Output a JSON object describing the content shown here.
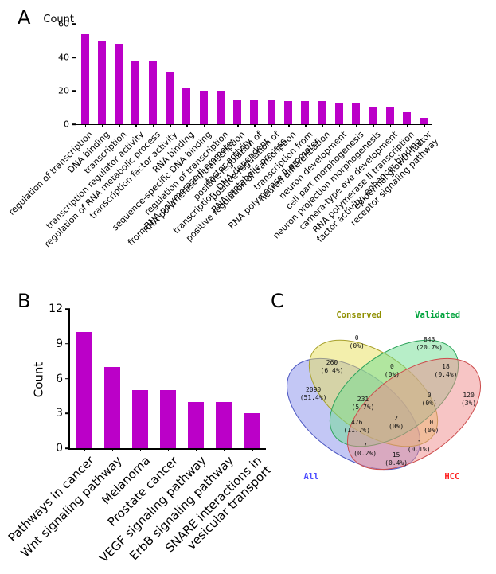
{
  "panels": {
    "a": "A",
    "b": "B",
    "c": "C"
  },
  "chart_data": [
    {
      "type": "bar",
      "panel": "A",
      "ylabel": "Count",
      "ylim": [
        0,
        60
      ],
      "yticks": [
        0,
        20,
        40,
        60
      ],
      "bar_color": "#bb00c8",
      "categories": [
        "regulation of transcription",
        "DNA binding",
        "transcription",
        "transcription regulator activity",
        "regulation of RNA metabolic process",
        "transcription factor activity",
        "RNA binding",
        "sequence-specific DNA binding",
        "regulation of transcription\nfrom RNA polymerase II promoter",
        "RNA polymerase II transcription\nfactor activity",
        "positive regulation of\ntranscription, DNA-dependent",
        "positive regulation of\nRNA metabolic process",
        "positive regulation of transcription",
        "transcription from\nRNA polymerase II promoter",
        "neuron differentiation",
        "neuron development",
        "cell part morphogenesis",
        "neuron projection morphogenesis",
        "camera-type eye development",
        "RNA polymerase II transcription\nfactor activity, enhancer binding",
        "epidermal growth factor\nreceptor signaling pathway"
      ],
      "values": [
        54,
        50,
        48,
        38,
        38,
        31,
        22,
        20,
        20,
        15,
        15,
        15,
        14,
        14,
        14,
        13,
        13,
        10,
        10,
        7,
        4
      ]
    },
    {
      "type": "bar",
      "panel": "B",
      "ylabel": "Count",
      "ylim": [
        0,
        12
      ],
      "yticks": [
        0,
        3,
        6,
        9,
        12
      ],
      "bar_color": "#bb00c8",
      "categories": [
        "Pathways in cancer",
        "Wnt signaling pathway",
        "Melanoma",
        "Prostate cancer",
        "VEGF signaling pathway",
        "ErbB signaling pathway",
        "SNARE interactions in\nvesicular transport"
      ],
      "values": [
        10,
        7,
        5,
        5,
        4,
        4,
        3
      ]
    },
    {
      "type": "venn",
      "panel": "C",
      "sets": [
        {
          "name": "Conserved",
          "color": "#8f8f00",
          "label_x": 38,
          "label_y": 4
        },
        {
          "name": "Validated",
          "color": "#00a33c",
          "label_x": 76,
          "label_y": 4
        },
        {
          "name": "All",
          "color": "#4c4cff",
          "label_x": 15,
          "label_y": 88
        },
        {
          "name": "HCC",
          "color": "#ff2020",
          "label_x": 83,
          "label_y": 88
        }
      ],
      "ellipses": [
        {
          "set": "All",
          "cx": 92,
          "cy": 134,
          "rx": 95,
          "ry": 53,
          "angle": 35,
          "fill": "#8890ec",
          "stroke": "#4a55c0"
        },
        {
          "set": "Conserved",
          "cx": 117,
          "cy": 108,
          "rx": 92,
          "ry": 50,
          "angle": 35,
          "fill": "#e8e05a",
          "stroke": "#a8a12c"
        },
        {
          "set": "Validated",
          "cx": 143,
          "cy": 108,
          "rx": 92,
          "ry": 50,
          "angle": -35,
          "fill": "#6fdd92",
          "stroke": "#2fa35c"
        },
        {
          "set": "HCC",
          "cx": 168,
          "cy": 134,
          "rx": 95,
          "ry": 53,
          "angle": -35,
          "fill": "#f08c8c",
          "stroke": "#cc4c4c"
        }
      ],
      "regions": [
        {
          "sets": "Conserved only",
          "count": "0",
          "pct": "(0%)",
          "x": 37,
          "y": 18
        },
        {
          "sets": "Validated only",
          "count": "843",
          "pct": "(20.7%)",
          "x": 72,
          "y": 19
        },
        {
          "sets": "Conserved∩All",
          "count": "260",
          "pct": "(6.4%)",
          "x": 25,
          "y": 31
        },
        {
          "sets": "Conserved∩Validated",
          "count": "0",
          "pct": "(0%)",
          "x": 54,
          "y": 33
        },
        {
          "sets": "Validated∩HCC",
          "count": "18",
          "pct": "(0.4%)",
          "x": 80,
          "y": 33
        },
        {
          "sets": "All only",
          "count": "2090",
          "pct": "(51.4%)",
          "x": 16,
          "y": 45
        },
        {
          "sets": "All∩Conserved∩Validated",
          "count": "231",
          "pct": "(5.7%)",
          "x": 40,
          "y": 50
        },
        {
          "sets": "Conserved∩Validated∩HCC",
          "count": "0",
          "pct": "(0%)",
          "x": 72,
          "y": 48
        },
        {
          "sets": "HCC only",
          "count": "120",
          "pct": "(3%)",
          "x": 91,
          "y": 48
        },
        {
          "sets": "All∩Conserved∩HCC",
          "count": "476",
          "pct": "(11.7%)",
          "x": 37,
          "y": 62
        },
        {
          "sets": "All∩Conserved∩Validated∩HCC",
          "count": "2",
          "pct": "(0%)",
          "x": 56,
          "y": 60
        },
        {
          "sets": "All∩Validated∩HCC",
          "count": "0",
          "pct": "(0%)",
          "x": 73,
          "y": 62
        },
        {
          "sets": "All∩Validated",
          "count": "7",
          "pct": "(0.2%)",
          "x": 41,
          "y": 74
        },
        {
          "sets": "Conserved∩HCC",
          "count": "3",
          "pct": "(0.1%)",
          "x": 67,
          "y": 72
        },
        {
          "sets": "All∩HCC",
          "count": "15",
          "pct": "(0.4%)",
          "x": 56,
          "y": 79
        }
      ]
    }
  ]
}
